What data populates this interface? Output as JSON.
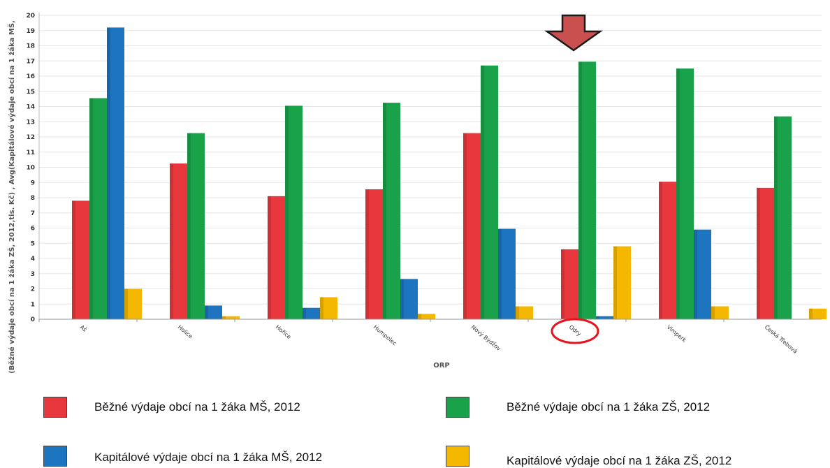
{
  "chart_data": {
    "type": "bar",
    "xlabel": "ORP",
    "ylabel": "(Běžné výdaje obcí na 1 žáka ZŠ, 2012,tis. Kč) , Avg(Kapitálové výdaje obcí na 1 žáka MŠ,",
    "ylim": [
      0,
      20
    ],
    "yticks": [
      "0",
      "1",
      "2",
      "3",
      "4",
      "5",
      "6",
      "7",
      "8",
      "9",
      "10",
      "11",
      "12",
      "13",
      "14",
      "15",
      "16",
      "17",
      "18",
      "19",
      "20"
    ],
    "grid": true,
    "legend_position": "bottom",
    "categories": [
      "Aš",
      "Holice",
      "Hořice",
      "Humpolec",
      "Nový Bydžov",
      "Odry",
      "Vimperk",
      "Česká Třebová"
    ],
    "series": [
      {
        "name": "Běžné výdaje obcí na 1 žáka MŠ, 2012",
        "color": "#e8383d",
        "values": [
          7.8,
          10.25,
          8.1,
          8.55,
          12.25,
          4.6,
          9.05,
          8.65
        ]
      },
      {
        "name": "Běžné výdaje obcí na 1 žáka ZŠ, 2012",
        "color": "#1aa24a",
        "values": [
          14.55,
          12.25,
          14.05,
          14.25,
          16.7,
          16.95,
          16.5,
          13.35
        ]
      },
      {
        "name": "Kapitálové výdaje obcí na 1 žáka MŠ, 2012",
        "color": "#1d74bf",
        "values": [
          19.2,
          0.9,
          0.75,
          2.65,
          5.95,
          0.2,
          5.9,
          0
        ]
      },
      {
        "name": "Kapitálové výdaje obcí na 1 žáka ZŠ, 2012",
        "color": "#f5b800",
        "values": [
          2.0,
          0.2,
          1.45,
          0.35,
          0.85,
          4.8,
          0.85,
          0.7
        ]
      }
    ],
    "highlight": {
      "category": "Odry",
      "marks": [
        "arrow",
        "circle"
      ],
      "arrow_color": "#c9504f",
      "circle_color": "#e8131c"
    }
  }
}
